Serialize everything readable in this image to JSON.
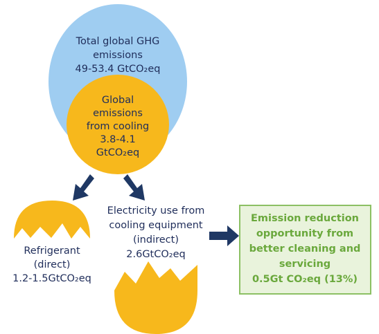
{
  "nodes": [
    {
      "lines": [
        "Total global GHG",
        "emissions",
        "49-53.4 GtCO₂eq"
      ]
    },
    {
      "lines": [
        "Global",
        "emissions",
        "from cooling",
        "3.8-4.1",
        "GtCO₂eq"
      ]
    },
    {
      "lines": [
        "Refrigerant",
        "(direct)",
        "1.2-1.5GtCO₂eq"
      ]
    },
    {
      "lines": [
        "Electricity use from",
        "cooling equipment",
        "(indirect)",
        "2.6GtCO₂eq"
      ]
    },
    {
      "lines": [
        "Emission reduction",
        "opportunity from",
        "better cleaning and",
        "servicing",
        "0.5Gt CO₂eq (13%)"
      ]
    }
  ]
}
